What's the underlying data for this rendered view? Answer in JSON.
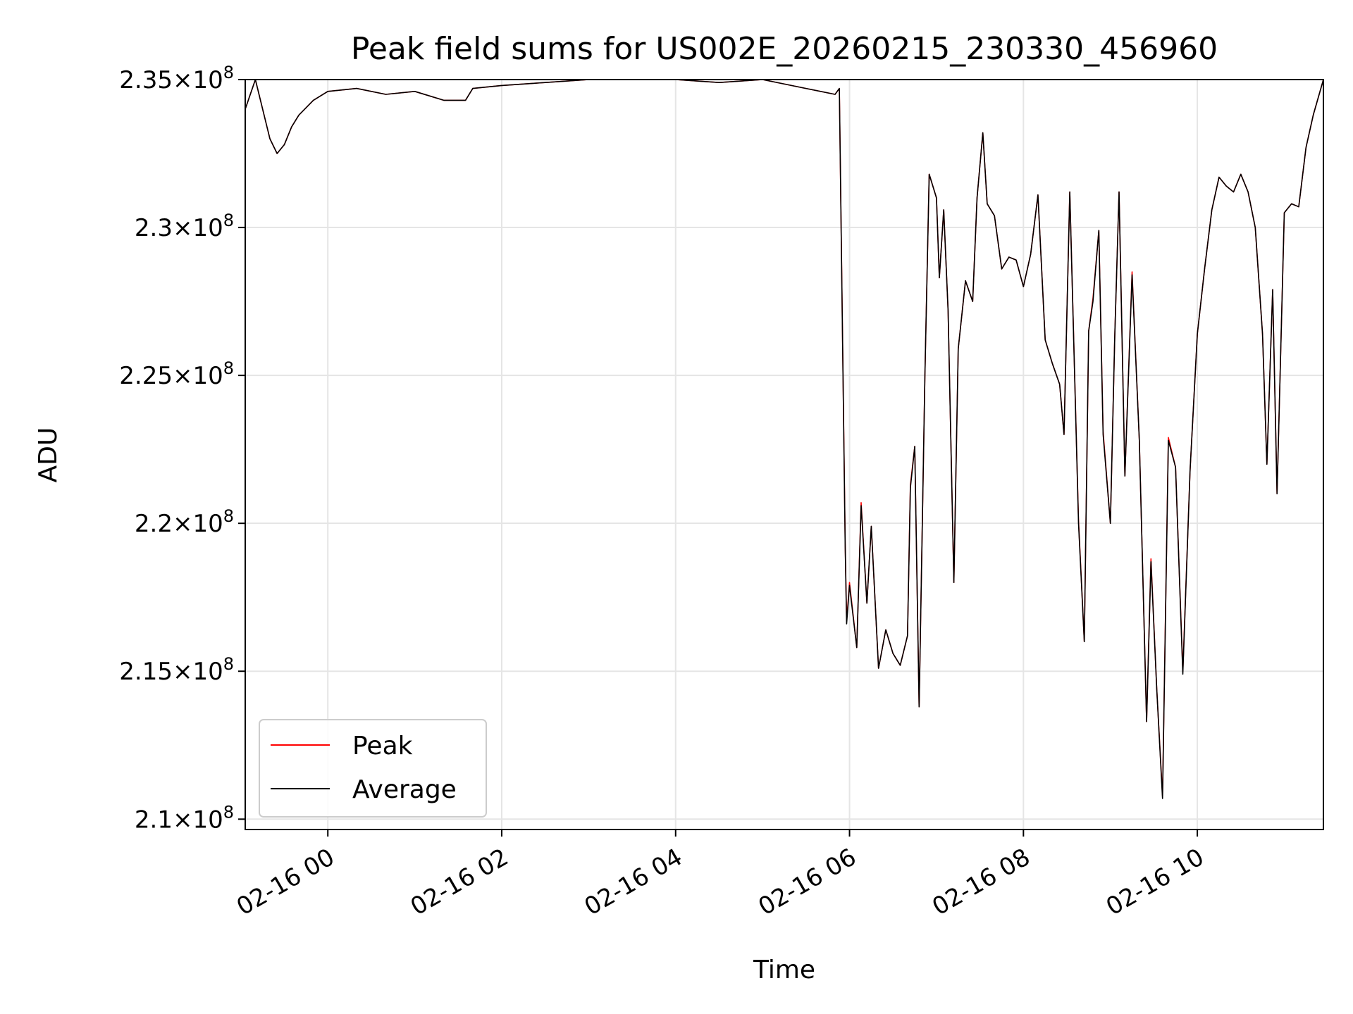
{
  "chart_data": {
    "type": "line",
    "title": "Peak field sums for US002E_20260215_230330_456960",
    "xlabel": "Time",
    "ylabel": "ADU",
    "x_axis": "datetime",
    "xlim": [
      "2026-02-15 23:03",
      "2026-02-16 11:27"
    ],
    "ylim": [
      209650000,
      235000000
    ],
    "x_ticks": [
      {
        "value": "2026-02-16 00:00",
        "label": "02-16 00"
      },
      {
        "value": "2026-02-16 02:00",
        "label": "02-16 02"
      },
      {
        "value": "2026-02-16 04:00",
        "label": "02-16 04"
      },
      {
        "value": "2026-02-16 06:00",
        "label": "02-16 06"
      },
      {
        "value": "2026-02-16 08:00",
        "label": "02-16 08"
      },
      {
        "value": "2026-02-16 10:00",
        "label": "02-16 10"
      }
    ],
    "y_ticks": [
      {
        "value": 235000000,
        "mantissa": "2.35",
        "exponent": "8"
      },
      {
        "value": 230000000,
        "mantissa": "2.3",
        "exponent": "8"
      },
      {
        "value": 225000000,
        "mantissa": "2.25",
        "exponent": "8"
      },
      {
        "value": 220000000,
        "mantissa": "2.2",
        "exponent": "8"
      },
      {
        "value": 215000000,
        "mantissa": "2.15",
        "exponent": "8"
      },
      {
        "value": 210000000,
        "mantissa": "2.1",
        "exponent": "8"
      }
    ],
    "grid": true,
    "legend_position": "lower-left",
    "x": [
      "2026-02-15 23:03",
      "2026-02-15 23:10",
      "2026-02-15 23:20",
      "2026-02-15 23:25",
      "2026-02-15 23:30",
      "2026-02-15 23:35",
      "2026-02-15 23:40",
      "2026-02-15 23:50",
      "2026-02-16 00:00",
      "2026-02-16 00:20",
      "2026-02-16 00:40",
      "2026-02-16 01:00",
      "2026-02-16 01:20",
      "2026-02-16 01:35",
      "2026-02-16 01:40",
      "2026-02-16 02:00",
      "2026-02-16 02:30",
      "2026-02-16 03:00",
      "2026-02-16 04:00",
      "2026-02-16 04:30",
      "2026-02-16 05:00",
      "2026-02-16 05:30",
      "2026-02-16 05:50",
      "2026-02-16 05:53",
      "2026-02-16 05:57",
      "2026-02-16 05:58",
      "2026-02-16 06:00",
      "2026-02-16 06:05",
      "2026-02-16 06:08",
      "2026-02-16 06:12",
      "2026-02-16 06:15",
      "2026-02-16 06:20",
      "2026-02-16 06:25",
      "2026-02-16 06:30",
      "2026-02-16 06:35",
      "2026-02-16 06:40",
      "2026-02-16 06:42",
      "2026-02-16 06:45",
      "2026-02-16 06:48",
      "2026-02-16 06:52",
      "2026-02-16 06:55",
      "2026-02-16 07:00",
      "2026-02-16 07:02",
      "2026-02-16 07:05",
      "2026-02-16 07:08",
      "2026-02-16 07:12",
      "2026-02-16 07:15",
      "2026-02-16 07:20",
      "2026-02-16 07:25",
      "2026-02-16 07:28",
      "2026-02-16 07:32",
      "2026-02-16 07:35",
      "2026-02-16 07:40",
      "2026-02-16 07:45",
      "2026-02-16 07:50",
      "2026-02-16 07:55",
      "2026-02-16 08:00",
      "2026-02-16 08:05",
      "2026-02-16 08:10",
      "2026-02-16 08:15",
      "2026-02-16 08:20",
      "2026-02-16 08:25",
      "2026-02-16 08:28",
      "2026-02-16 08:32",
      "2026-02-16 08:38",
      "2026-02-16 08:42",
      "2026-02-16 08:45",
      "2026-02-16 08:48",
      "2026-02-16 08:52",
      "2026-02-16 08:55",
      "2026-02-16 09:00",
      "2026-02-16 09:03",
      "2026-02-16 09:06",
      "2026-02-16 09:10",
      "2026-02-16 09:15",
      "2026-02-16 09:20",
      "2026-02-16 09:25",
      "2026-02-16 09:28",
      "2026-02-16 09:32",
      "2026-02-16 09:36",
      "2026-02-16 09:40",
      "2026-02-16 09:45",
      "2026-02-16 09:50",
      "2026-02-16 09:55",
      "2026-02-16 10:00",
      "2026-02-16 10:05",
      "2026-02-16 10:10",
      "2026-02-16 10:15",
      "2026-02-16 10:20",
      "2026-02-16 10:25",
      "2026-02-16 10:30",
      "2026-02-16 10:35",
      "2026-02-16 10:40",
      "2026-02-16 10:45",
      "2026-02-16 10:48",
      "2026-02-16 10:52",
      "2026-02-16 10:55",
      "2026-02-16 11:00",
      "2026-02-16 11:05",
      "2026-02-16 11:10",
      "2026-02-16 11:15",
      "2026-02-16 11:20",
      "2026-02-16 11:27"
    ],
    "series": [
      {
        "name": "Peak",
        "color": "#ff0000",
        "values": [
          234000000,
          235000000,
          233000000,
          232500000,
          232800000,
          233400000,
          233800000,
          234300000,
          234600000,
          234700000,
          234500000,
          234600000,
          234300000,
          234300000,
          234700000,
          234800000,
          234900000,
          235000000,
          235000000,
          234900000,
          235000000,
          234700000,
          234500000,
          234700000,
          219300000,
          216700000,
          218000000,
          215800000,
          220700000,
          217300000,
          219900000,
          215100000,
          216400000,
          215600000,
          215200000,
          216200000,
          221300000,
          222600000,
          213800000,
          225000000,
          231800000,
          231000000,
          228300000,
          230600000,
          227200000,
          218000000,
          225900000,
          228200000,
          227500000,
          231000000,
          233200000,
          230800000,
          230400000,
          228600000,
          229000000,
          228900000,
          228000000,
          229100000,
          231100000,
          226200000,
          225400000,
          224700000,
          223000000,
          231200000,
          220100000,
          216000000,
          226500000,
          227600000,
          229900000,
          223100000,
          220000000,
          226300000,
          231200000,
          221600000,
          228500000,
          222800000,
          213300000,
          218800000,
          214400000,
          210800000,
          222900000,
          221900000,
          215000000,
          221800000,
          226400000,
          228600000,
          230600000,
          231700000,
          231400000,
          231200000,
          231800000,
          231200000,
          230000000,
          226400000,
          222000000,
          227900000,
          221000000,
          230500000,
          230800000,
          230700000,
          232700000,
          233800000,
          235000000
        ]
      },
      {
        "name": "Average",
        "color": "#000000",
        "values": [
          234000000,
          235000000,
          233000000,
          232500000,
          232800000,
          233400000,
          233800000,
          234300000,
          234600000,
          234700000,
          234500000,
          234600000,
          234300000,
          234300000,
          234700000,
          234800000,
          234900000,
          235000000,
          235000000,
          234900000,
          235000000,
          234700000,
          234500000,
          234700000,
          219200000,
          216600000,
          217900000,
          215800000,
          220600000,
          217300000,
          219900000,
          215100000,
          216400000,
          215600000,
          215200000,
          216200000,
          221200000,
          222600000,
          213800000,
          225000000,
          231800000,
          231000000,
          228300000,
          230600000,
          227200000,
          218000000,
          225900000,
          228200000,
          227500000,
          231000000,
          233200000,
          230800000,
          230400000,
          228600000,
          229000000,
          228900000,
          228000000,
          229100000,
          231100000,
          226200000,
          225400000,
          224700000,
          223000000,
          231200000,
          220000000,
          216000000,
          226500000,
          227500000,
          229900000,
          223000000,
          220000000,
          226300000,
          231200000,
          221600000,
          228400000,
          222800000,
          213300000,
          218700000,
          214400000,
          210700000,
          222800000,
          221900000,
          214900000,
          221800000,
          226400000,
          228600000,
          230600000,
          231700000,
          231400000,
          231200000,
          231800000,
          231200000,
          230000000,
          226400000,
          222000000,
          227900000,
          221000000,
          230500000,
          230800000,
          230700000,
          232700000,
          233800000,
          235000000
        ]
      }
    ]
  }
}
